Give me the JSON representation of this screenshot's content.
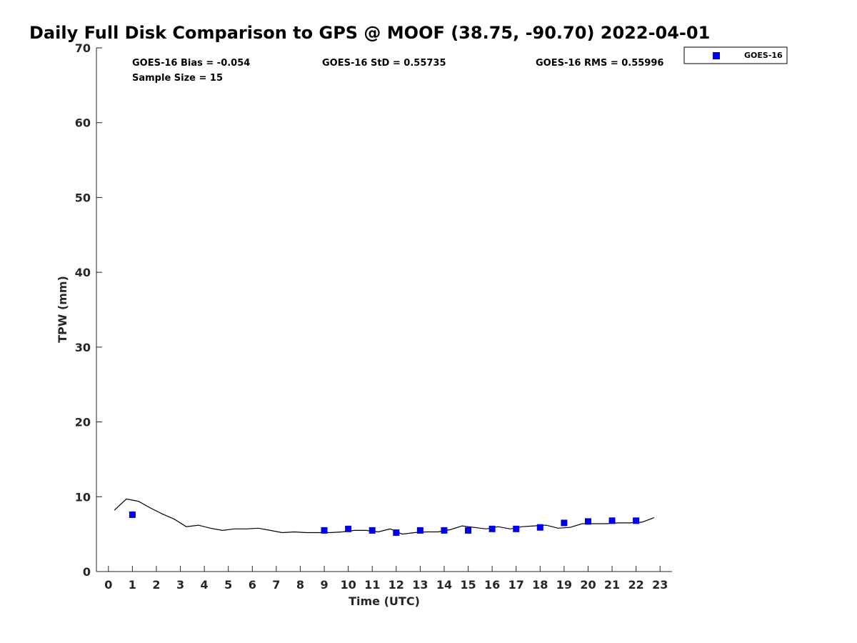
{
  "chart_data": {
    "type": "scatter",
    "title": "Daily Full Disk Comparison to GPS @ MOOF (38.75, -90.70) 2022-04-01",
    "xlabel": "Time (UTC)",
    "ylabel": "TPW (mm)",
    "xlim": [
      -0.5,
      23.5
    ],
    "ylim": [
      0,
      70
    ],
    "xticks": [
      "0",
      "1",
      "2",
      "3",
      "4",
      "5",
      "6",
      "7",
      "8",
      "9",
      "10",
      "11",
      "12",
      "13",
      "14",
      "15",
      "16",
      "17",
      "18",
      "19",
      "20",
      "21",
      "22",
      "23"
    ],
    "yticks": [
      "0",
      "10",
      "20",
      "30",
      "40",
      "50",
      "60",
      "70"
    ],
    "stats": {
      "bias": "GOES-16 Bias = -0.054",
      "std": "GOES-16 StD = 0.55735",
      "rms": "GOES-16 RMS = 0.55996",
      "sample": "Sample Size = 15"
    },
    "legend": {
      "label": "GOES-16",
      "position": "top-right-outside"
    },
    "colors": {
      "goes": "#0000e6",
      "gps": "#000000",
      "axis": "#262626"
    },
    "series": [
      {
        "name": "GOES-16",
        "kind": "scatter",
        "x": [
          1,
          9,
          10,
          11,
          12,
          13,
          14,
          15,
          16,
          17,
          18,
          19,
          20,
          21,
          22
        ],
        "y": [
          7.6,
          5.5,
          5.7,
          5.5,
          5.2,
          5.5,
          5.5,
          5.5,
          5.7,
          5.7,
          5.9,
          6.5,
          6.7,
          6.8,
          6.8
        ]
      },
      {
        "name": "GPS",
        "kind": "line",
        "x": [
          0.25,
          0.75,
          1.25,
          1.75,
          2.25,
          2.75,
          3.25,
          3.75,
          4.25,
          4.75,
          5.25,
          5.75,
          6.25,
          6.75,
          7.25,
          7.75,
          8.25,
          8.75,
          9.25,
          9.75,
          10.25,
          10.75,
          11.25,
          11.75,
          12.25,
          12.75,
          13.25,
          13.75,
          14.25,
          14.75,
          15.25,
          15.75,
          16.25,
          16.75,
          17.25,
          17.75,
          18.25,
          18.75,
          19.25,
          19.75,
          20.25,
          20.75,
          21.25,
          21.75,
          22.25,
          22.75
        ],
        "y": [
          8.2,
          9.7,
          9.4,
          8.5,
          7.7,
          7.0,
          6.0,
          6.2,
          5.8,
          5.5,
          5.7,
          5.7,
          5.8,
          5.5,
          5.2,
          5.3,
          5.2,
          5.2,
          5.2,
          5.3,
          5.5,
          5.5,
          5.3,
          5.7,
          5.0,
          5.2,
          5.3,
          5.3,
          5.6,
          6.1,
          5.9,
          5.7,
          6.0,
          5.7,
          6.0,
          6.1,
          6.2,
          5.8,
          5.9,
          6.4,
          6.4,
          6.4,
          6.5,
          6.5,
          6.6,
          7.2
        ]
      }
    ]
  }
}
